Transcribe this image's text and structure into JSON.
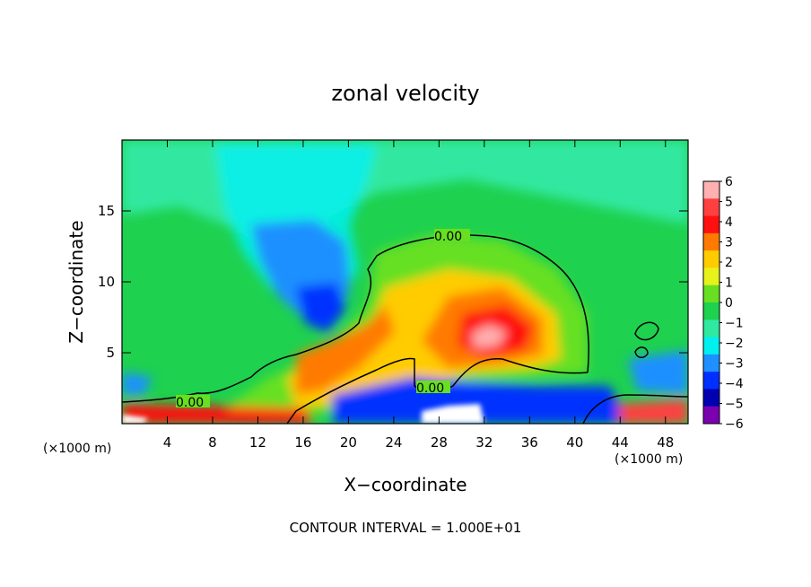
{
  "chart_data": {
    "type": "heatmap",
    "title": "zonal velocity",
    "xlabel": "X−coordinate",
    "ylabel": "Z−coordinate",
    "x_unit_left": "(×1000 m)",
    "x_unit_right": "(×1000 m)",
    "xlim": [
      0,
      50
    ],
    "ylim": [
      0,
      20
    ],
    "x_ticks": [
      4,
      8,
      12,
      16,
      20,
      24,
      28,
      32,
      36,
      40,
      44,
      48
    ],
    "y_ticks": [
      5,
      10,
      15
    ],
    "colorbar": {
      "levels": [
        6,
        5,
        4,
        3,
        2,
        1,
        0,
        -1,
        -2,
        -3,
        -4,
        -5,
        -6
      ],
      "labels": [
        "6",
        "5",
        "4",
        "3",
        "2",
        "1",
        "0",
        "−1",
        "−2",
        "−3",
        "−4",
        "−5",
        "−6"
      ],
      "colors": [
        "#ffb0b0",
        "#ff4040",
        "#ff1010",
        "#ff7a00",
        "#ffcc00",
        "#e6f21a",
        "#66e020",
        "#1ed14f",
        "#30e8a0",
        "#00f0f0",
        "#1e90ff",
        "#0030ff",
        "#0000b0",
        "#7a00b0"
      ]
    },
    "contour_labels": [
      "0.00",
      "0.00",
      "0.00"
    ],
    "footer": "CONTOUR INTERVAL = 1.000E+01"
  }
}
